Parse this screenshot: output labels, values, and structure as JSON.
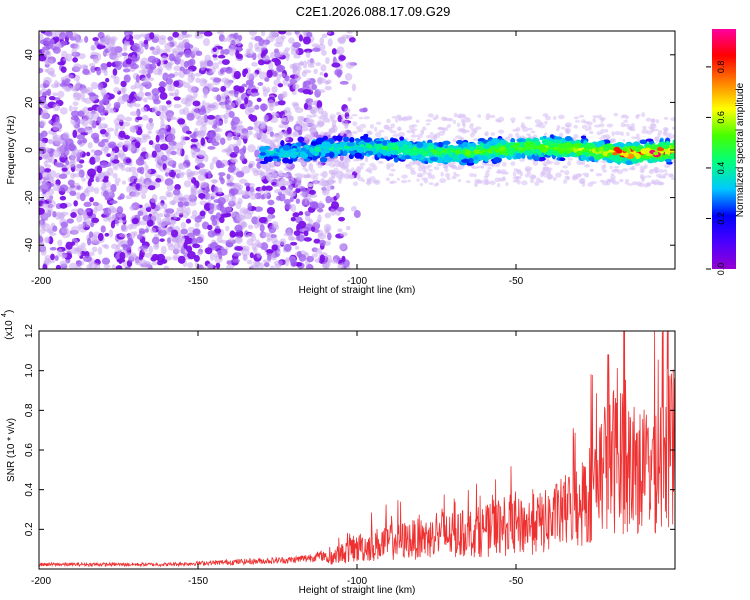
{
  "title": "C2E1.2026.088.17.09.G29",
  "colorbar": {
    "label": "Normalized spectral amplitude",
    "ticks": [
      "0.0",
      "0.2",
      "0.4",
      "0.6",
      "0.8"
    ],
    "tick_values": [
      0.0,
      0.2,
      0.4,
      0.6,
      0.8
    ],
    "range": [
      0,
      0.95
    ],
    "stops": [
      "#9400d3",
      "#4b00ff",
      "#0000ff",
      "#00c8ff",
      "#00ff80",
      "#44ff00",
      "#ffff00",
      "#ff8000",
      "#ff0000",
      "#ff00a0"
    ]
  },
  "chart_data": [
    {
      "type": "heatmap",
      "name": "spectrogram",
      "title": "C2E1.2026.088.17.09.G29",
      "xlabel": "Height of straight line (km)",
      "ylabel": "Frequency (Hz)",
      "xlim": [
        -200,
        0
      ],
      "ylim": [
        -50,
        50
      ],
      "x_ticks": [
        -200,
        -150,
        -100,
        -50
      ],
      "x_tick_labels": [
        "-200",
        "-150",
        "-100",
        "-50"
      ],
      "y_ticks": [
        -40,
        -20,
        0,
        20,
        40
      ],
      "y_tick_labels": [
        "-40",
        "-20",
        "0",
        "20",
        "40"
      ],
      "signal_band": {
        "x_range": [
          -130,
          0
        ],
        "center_hz": 0,
        "half_width_hz": 5
      },
      "noise_region": {
        "x_range": [
          -200,
          -105
        ]
      },
      "peak_amplitude_region": {
        "x_range": [
          -20,
          0
        ],
        "amplitude": 0.95
      }
    },
    {
      "type": "line",
      "name": "snr",
      "xlabel": "Height of straight line (km)",
      "ylabel": "SNR (10 * v/v)",
      "y_scale_label": "(x10",
      "y_scale_exp": "4",
      "xlim": [
        -200,
        0
      ],
      "ylim": [
        0,
        1.2
      ],
      "x_ticks": [
        -200,
        -150,
        -100,
        -50
      ],
      "x_tick_labels": [
        "-200",
        "-150",
        "-100",
        "-50"
      ],
      "y_ticks": [
        0.2,
        0.4,
        0.6,
        0.8,
        1.0,
        1.2
      ],
      "y_tick_labels": [
        "0.2",
        "0.4",
        "0.6",
        "0.8",
        "1.0",
        "1.2"
      ],
      "series": [
        {
          "name": "SNR",
          "color": "#ee3030",
          "x": [
            -200,
            -190,
            -180,
            -170,
            -160,
            -150,
            -140,
            -130,
            -120,
            -110,
            -100,
            -90,
            -80,
            -70,
            -60,
            -50,
            -40,
            -30,
            -20,
            -10,
            0
          ],
          "values": [
            0.02,
            0.02,
            0.02,
            0.02,
            0.02,
            0.025,
            0.03,
            0.035,
            0.04,
            0.06,
            0.13,
            0.17,
            0.19,
            0.21,
            0.24,
            0.26,
            0.3,
            0.4,
            0.7,
            0.6,
            0.8
          ],
          "peaks": [
            {
              "x": -16,
              "y": 1.2
            },
            {
              "x": -21,
              "y": 1.08
            },
            {
              "x": 0,
              "y": 0.96
            }
          ]
        }
      ]
    }
  ]
}
